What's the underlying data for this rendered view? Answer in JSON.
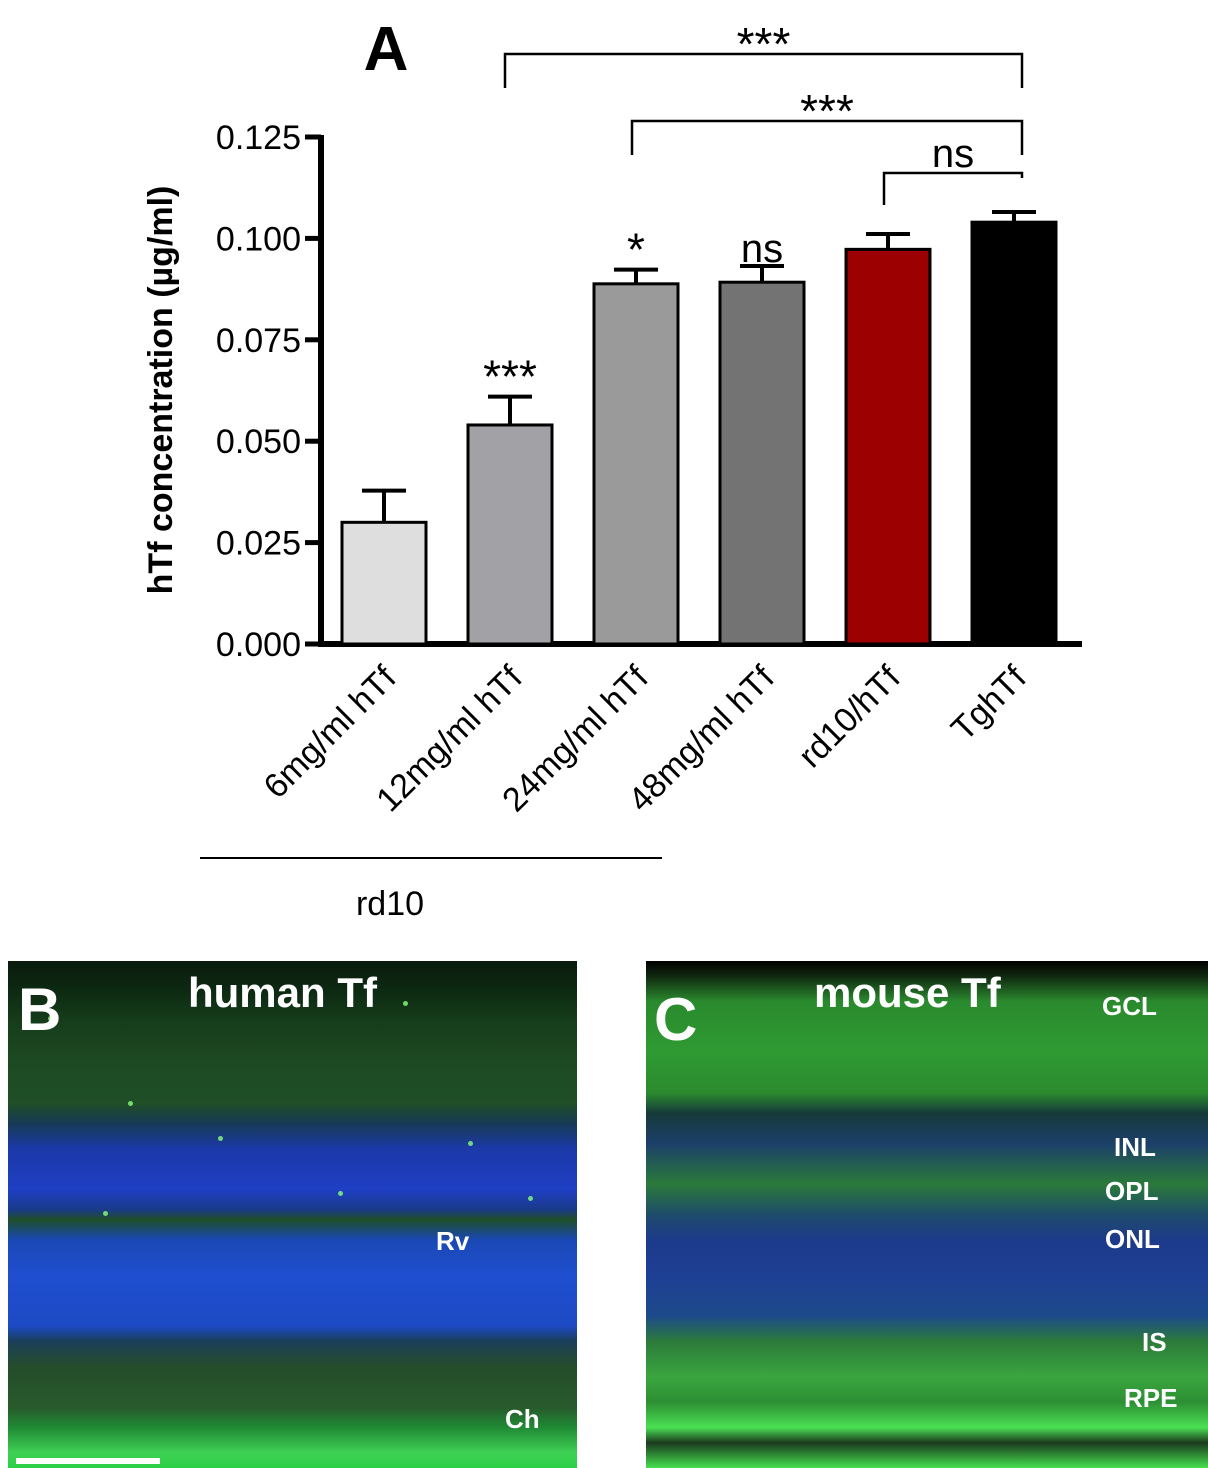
{
  "chart_data": {
    "type": "bar",
    "panel_label": "A",
    "ylabel": "hTf concentration (µg/ml)",
    "ylim": [
      0,
      0.125
    ],
    "yticks": [
      "0.000",
      "0.025",
      "0.050",
      "0.075",
      "0.100",
      "0.125"
    ],
    "yticks_values": [
      0,
      0.025,
      0.05,
      0.075,
      0.1,
      0.125
    ],
    "categories": [
      "6mg/ml hTf",
      "12mg/ml hTf",
      "24mg/ml hTf",
      "48mg/ml hTf",
      "rd10/hTf",
      "TghTf"
    ],
    "values": [
      0.03,
      0.054,
      0.0888,
      0.0892,
      0.0973,
      0.104
    ],
    "errors": [
      0.0078,
      0.007,
      0.0035,
      0.004,
      0.0038,
      0.0025
    ],
    "colors": [
      "#dedede",
      "#a1a1a6",
      "#9a9a9a",
      "#737373",
      "#9c0000",
      "#000000"
    ],
    "bar_annotations": [
      "",
      "***",
      "*",
      "ns",
      "",
      ""
    ],
    "brackets": [
      {
        "from": 1,
        "to": 5,
        "label": "***"
      },
      {
        "from": 2,
        "to": 5,
        "label": "***"
      },
      {
        "from": 4,
        "to": 5,
        "label": "ns"
      }
    ],
    "group_label": "rd10",
    "group_span": [
      0,
      3
    ]
  },
  "panel_b": {
    "letter": "B",
    "title": "human Tf",
    "labels": [
      "Rv",
      "Ch"
    ]
  },
  "panel_c": {
    "letter": "C",
    "title": "mouse Tf",
    "labels": [
      "GCL",
      "INL",
      "OPL",
      "ONL",
      "IS",
      "RPE"
    ]
  }
}
